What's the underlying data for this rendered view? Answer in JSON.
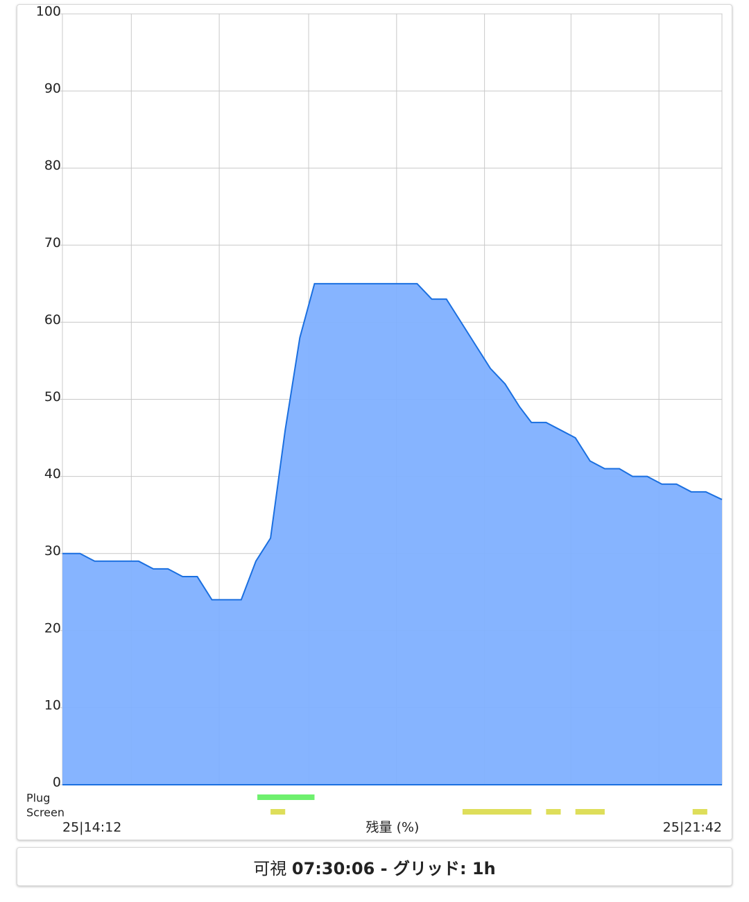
{
  "chart_data": {
    "type": "area",
    "x_label": "残量 (%)",
    "x": [
      0,
      12,
      22,
      52,
      62,
      72,
      82,
      92,
      102,
      122,
      132,
      142,
      152,
      162,
      172,
      242,
      252,
      262,
      272,
      282,
      292,
      302,
      312,
      320,
      330,
      340,
      350,
      360,
      370,
      380,
      389,
      399,
      409,
      419,
      429,
      439,
      450
    ],
    "series": [
      {
        "color": "#1a6fe0",
        "fill": "#80b0ff",
        "values": [
          30,
          30,
          29,
          29,
          28,
          28,
          27,
          27,
          24,
          24,
          29,
          32,
          46,
          58,
          65,
          65,
          63,
          63,
          60,
          57,
          54,
          52,
          49,
          47,
          47,
          46,
          45,
          42,
          41,
          41,
          40,
          40,
          39,
          39,
          38,
          38,
          37
        ]
      }
    ],
    "xlim": [
      0,
      450
    ],
    "xticks": [
      {
        "value": 0,
        "label": "25|14:12"
      },
      {
        "value": 47,
        "label": null
      },
      {
        "value": 107,
        "label": null
      },
      {
        "value": 168,
        "label": null
      },
      {
        "value": 228,
        "label": null
      },
      {
        "value": 288,
        "label": null
      },
      {
        "value": 347,
        "label": null
      },
      {
        "value": 407,
        "label": null
      },
      {
        "value": 450,
        "label": "25|21:42"
      }
    ],
    "ylim": [
      0,
      100
    ],
    "yticks": [
      0,
      10,
      20,
      30,
      40,
      50,
      60,
      70,
      80,
      90,
      100
    ],
    "grid": true,
    "tracks": [
      {
        "name": "Plug",
        "color": "#6ef06e",
        "segments": [
          [
            133,
            172
          ]
        ]
      },
      {
        "name": "Screen",
        "color": "#dede5a",
        "segments": [
          [
            142,
            152
          ],
          [
            273,
            320
          ],
          [
            330,
            340
          ],
          [
            350,
            370
          ],
          [
            430,
            440
          ]
        ]
      }
    ]
  },
  "footer": {
    "prefix": "可視",
    "text": "07:30:06 - グリッド: 1h"
  }
}
